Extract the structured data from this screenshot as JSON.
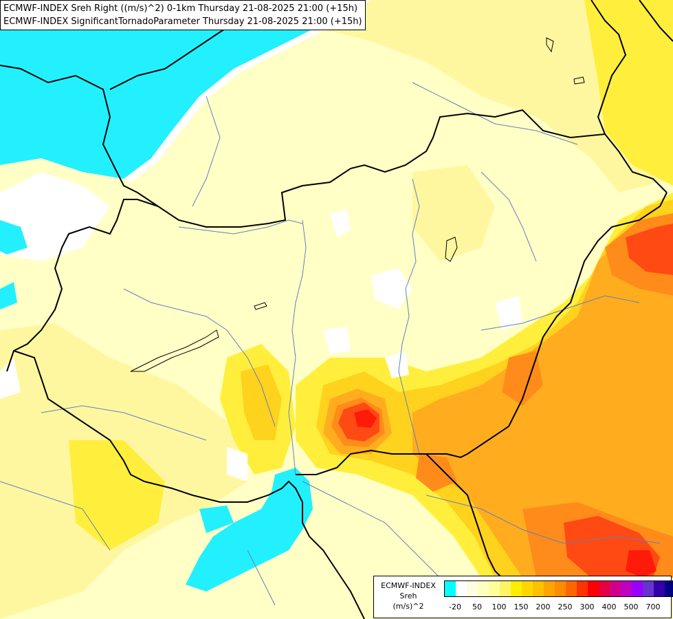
{
  "title_lines": [
    "ECMWF-INDEX Sreh Right ((m/s)^2) 0-1km Thursday 21-08-2025 21:00 (+15h)",
    "ECMWF-INDEX SignificantTornadoParameter Thursday 21-08-2025 21:00 (+15h)"
  ],
  "legend": {
    "source": "ECMWF-INDEX",
    "variable": "Sreh",
    "unit": "(m/s)^2",
    "colors": [
      "#00ffff",
      "#ffffff",
      "#fffde0",
      "#ffffc0",
      "#ffff99",
      "#fff466",
      "#ffee00",
      "#ffd700",
      "#ffc000",
      "#ffa500",
      "#ff8c00",
      "#ff6600",
      "#ff3300",
      "#ff0000",
      "#e60040",
      "#d0008a",
      "#c000c0",
      "#9900ff",
      "#6633cc",
      "#3300aa",
      "#000080"
    ],
    "tick_labels": [
      "-20",
      "50",
      "100",
      "150",
      "200",
      "250",
      "300",
      "400",
      "500",
      "700"
    ]
  },
  "fill_colors": {
    "cyan": "#22f0ff",
    "white": "#ffffff",
    "pale": "#ffffc6",
    "light": "#fff7a0",
    "yellow": "#ffef3c",
    "gold": "#ffd21e",
    "orange": "#ffad1e",
    "dkorange": "#ff8c1a",
    "red": "#ff4a14",
    "brightred": "#ff1a0a"
  }
}
